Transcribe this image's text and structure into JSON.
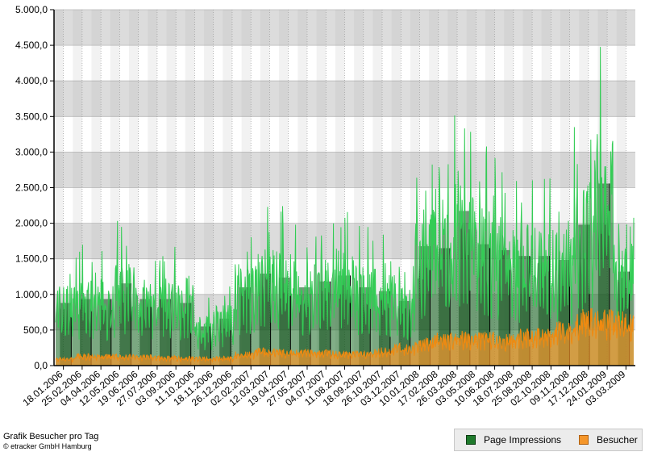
{
  "chart_data": {
    "type": "area",
    "title": "Grafik Besucher pro Tag",
    "credit": "© etracker GmbH Hamburg",
    "ylim": [
      0,
      5000
    ],
    "y_tick_labels": [
      "0,0",
      "500,0",
      "1.000,0",
      "1.500,0",
      "2.000,0",
      "2.500,0",
      "3.000,0",
      "3.500,0",
      "4.000,0",
      "4.500,0",
      "5.000,0"
    ],
    "x_tick_labels": [
      "18.01.2006",
      "25.02.2006",
      "04.04.2006",
      "12.05.2006",
      "19.06.2006",
      "27.07.2006",
      "03.09.2006",
      "11.10.2006",
      "18.11.2006",
      "26.12.2006",
      "02.02.2007",
      "12.03.2007",
      "19.04.2007",
      "27.05.2007",
      "04.07.2007",
      "11.08.2007",
      "18.09.2007",
      "26.10.2007",
      "03.12.2007",
      "10.01.2008",
      "17.02.2008",
      "26.03.2008",
      "03.05.2008",
      "10.06.2008",
      "18.07.2008",
      "25.08.2008",
      "02.10.2008",
      "09.11.2008",
      "17.12.2008",
      "24.01.2009",
      "03.03.2009"
    ],
    "grid": true,
    "legend_position": "bottom-right",
    "series": [
      {
        "name": "Page Impressions",
        "color": "#1a6b25",
        "line_color": "#33cc55",
        "peak_values": [
          1600,
          1700,
          1700,
          2100,
          1700,
          1700,
          1600,
          1000,
          1200,
          2000,
          2350,
          2250,
          2000,
          2150,
          2300,
          2000,
          1900,
          1650,
          3050,
          3000,
          3950,
          3100,
          2950,
          2800,
          2800,
          2700,
          3600,
          4650,
          2400
        ]
      },
      {
        "name": "Besucher",
        "color": "#f5962a",
        "peak_values": [
          130,
          190,
          180,
          180,
          170,
          160,
          150,
          140,
          150,
          220,
          280,
          260,
          260,
          250,
          230,
          240,
          290,
          350,
          450,
          520,
          550,
          550,
          500,
          580,
          600,
          700,
          900,
          880,
          850
        ]
      }
    ]
  },
  "legend": {
    "page_impressions_label": "Page Impressions",
    "besucher_label": "Besucher",
    "page_impressions_color": "#1f7a2c",
    "besucher_color": "#f5962a"
  }
}
